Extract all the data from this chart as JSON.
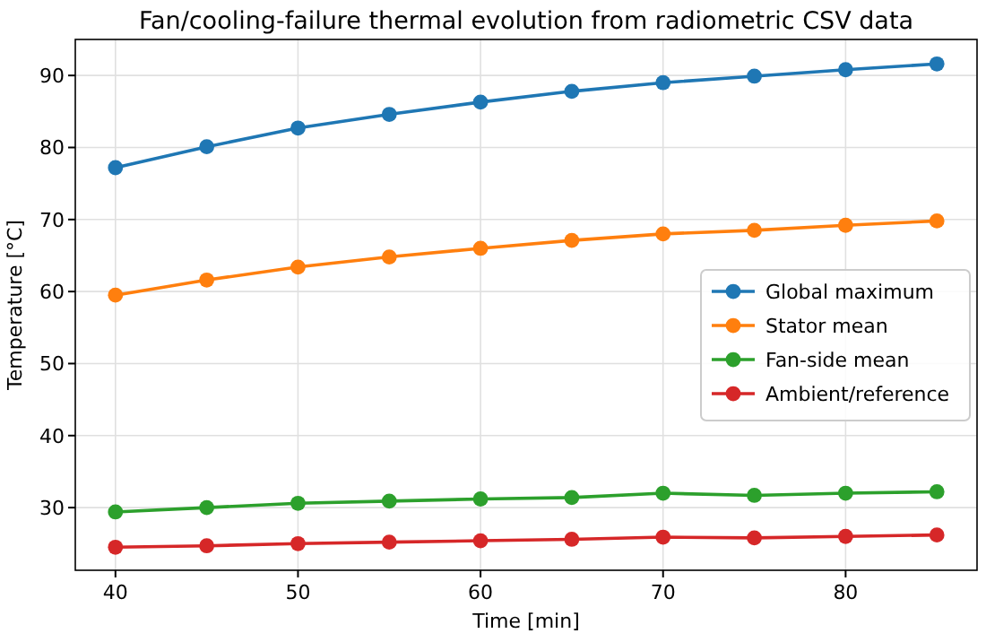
{
  "chart_data": {
    "type": "line",
    "title": "Fan/cooling-failure thermal evolution from radiometric CSV data",
    "xlabel": "Time [min]",
    "ylabel": "Temperature [°C]",
    "x": [
      40,
      45,
      50,
      55,
      60,
      65,
      70,
      75,
      80,
      85
    ],
    "series": [
      {
        "name": "Global maximum",
        "color": "#1f77b4",
        "values": [
          77.2,
          80.1,
          82.7,
          84.6,
          86.3,
          87.8,
          89.0,
          89.9,
          90.8,
          91.6
        ]
      },
      {
        "name": "Stator mean",
        "color": "#ff7f0e",
        "values": [
          59.5,
          61.6,
          63.4,
          64.8,
          66.0,
          67.1,
          68.0,
          68.5,
          69.2,
          69.8
        ]
      },
      {
        "name": "Fan-side mean",
        "color": "#2ca02c",
        "values": [
          29.4,
          30.0,
          30.6,
          30.9,
          31.2,
          31.4,
          32.0,
          31.7,
          32.0,
          32.2
        ]
      },
      {
        "name": "Ambient/reference",
        "color": "#d62728",
        "values": [
          24.5,
          24.7,
          25.0,
          25.2,
          25.4,
          25.6,
          25.9,
          25.8,
          26.0,
          26.2
        ]
      }
    ],
    "xlim": [
      37.8,
      87.2
    ],
    "ylim": [
      21.3,
      95
    ],
    "xticks": [
      40,
      50,
      60,
      70,
      80
    ],
    "yticks": [
      30,
      40,
      50,
      60,
      70,
      80,
      90
    ],
    "grid": true,
    "legend": "right",
    "marker": "circle",
    "line_style": "solid"
  }
}
